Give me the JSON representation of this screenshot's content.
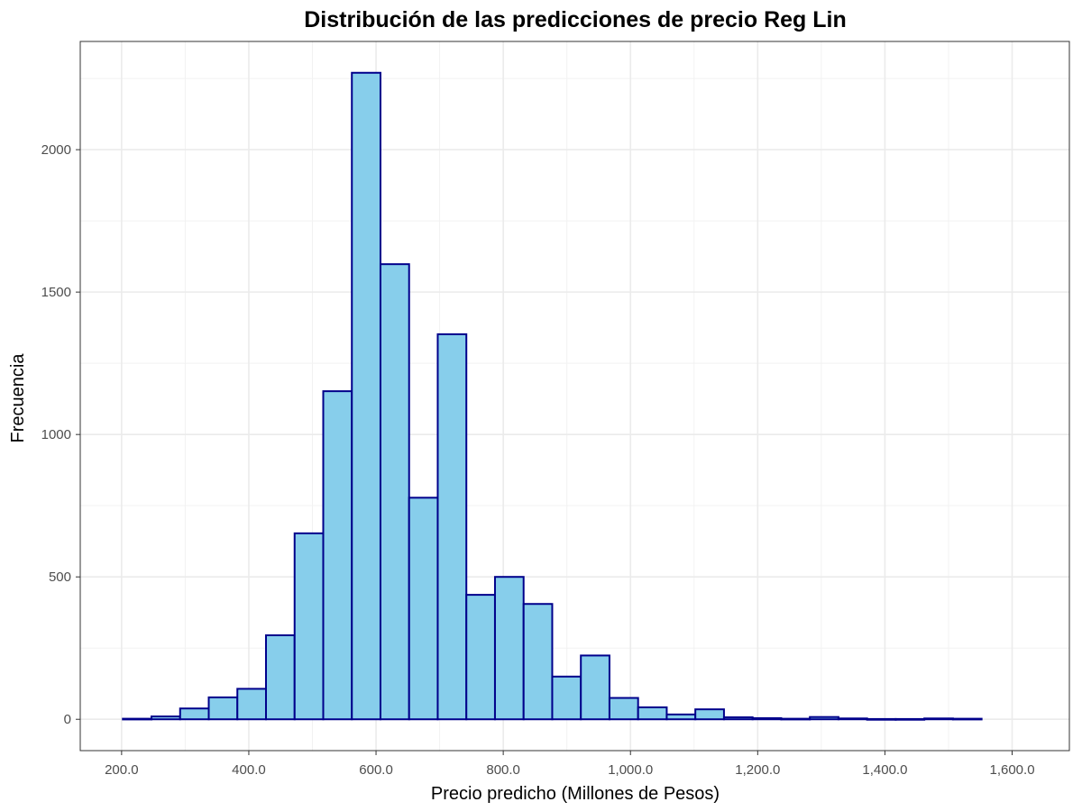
{
  "chart_data": {
    "type": "bar",
    "title": "Distribución de las predicciones de precio Reg Lin",
    "xlabel": "Precio predicho (Millones de Pesos)",
    "ylabel": "Frecuencia",
    "xlim": [
      135,
      1690
    ],
    "ylim": [
      -110,
      2380
    ],
    "x_ticks": [
      200,
      400,
      600,
      800,
      1000,
      1200,
      1400,
      1600
    ],
    "x_tick_labels": [
      "200.0",
      "400.0",
      "600.0",
      "800.0",
      "1,000.0",
      "1,200.0",
      "1,400.0",
      "1,600.0"
    ],
    "y_ticks": [
      0,
      500,
      1000,
      1500,
      2000
    ],
    "y_tick_labels": [
      "0",
      "500",
      "1000",
      "1500",
      "2000"
    ],
    "grid": true,
    "bin_width": 45,
    "bins": [
      {
        "start": 202,
        "end": 247,
        "count": 2
      },
      {
        "start": 247,
        "end": 292,
        "count": 10
      },
      {
        "start": 292,
        "end": 337,
        "count": 38
      },
      {
        "start": 337,
        "end": 382,
        "count": 77
      },
      {
        "start": 382,
        "end": 427,
        "count": 107
      },
      {
        "start": 427,
        "end": 472,
        "count": 295
      },
      {
        "start": 472,
        "end": 517,
        "count": 653
      },
      {
        "start": 517,
        "end": 562,
        "count": 1152
      },
      {
        "start": 562,
        "end": 607,
        "count": 2270
      },
      {
        "start": 607,
        "end": 652,
        "count": 1598
      },
      {
        "start": 652,
        "end": 697,
        "count": 778
      },
      {
        "start": 697,
        "end": 742,
        "count": 1352
      },
      {
        "start": 742,
        "end": 787,
        "count": 437
      },
      {
        "start": 787,
        "end": 832,
        "count": 500
      },
      {
        "start": 832,
        "end": 877,
        "count": 405
      },
      {
        "start": 877,
        "end": 922,
        "count": 150
      },
      {
        "start": 922,
        "end": 967,
        "count": 224
      },
      {
        "start": 967,
        "end": 1012,
        "count": 75
      },
      {
        "start": 1012,
        "end": 1057,
        "count": 42
      },
      {
        "start": 1057,
        "end": 1102,
        "count": 17
      },
      {
        "start": 1102,
        "end": 1147,
        "count": 35
      },
      {
        "start": 1147,
        "end": 1192,
        "count": 7
      },
      {
        "start": 1192,
        "end": 1237,
        "count": 4
      },
      {
        "start": 1237,
        "end": 1282,
        "count": 2
      },
      {
        "start": 1282,
        "end": 1327,
        "count": 8
      },
      {
        "start": 1327,
        "end": 1372,
        "count": 3
      },
      {
        "start": 1372,
        "end": 1417,
        "count": 1
      },
      {
        "start": 1417,
        "end": 1462,
        "count": 1
      },
      {
        "start": 1462,
        "end": 1507,
        "count": 3
      },
      {
        "start": 1507,
        "end": 1552,
        "count": 2
      }
    ],
    "colors": {
      "fill": "#87CEEB",
      "stroke": "#00008B",
      "grid_major": "#ebebeb",
      "grid_minor": "#f2f2f2",
      "panel_border": "#333333",
      "tick_text": "#4d4d4d"
    }
  }
}
